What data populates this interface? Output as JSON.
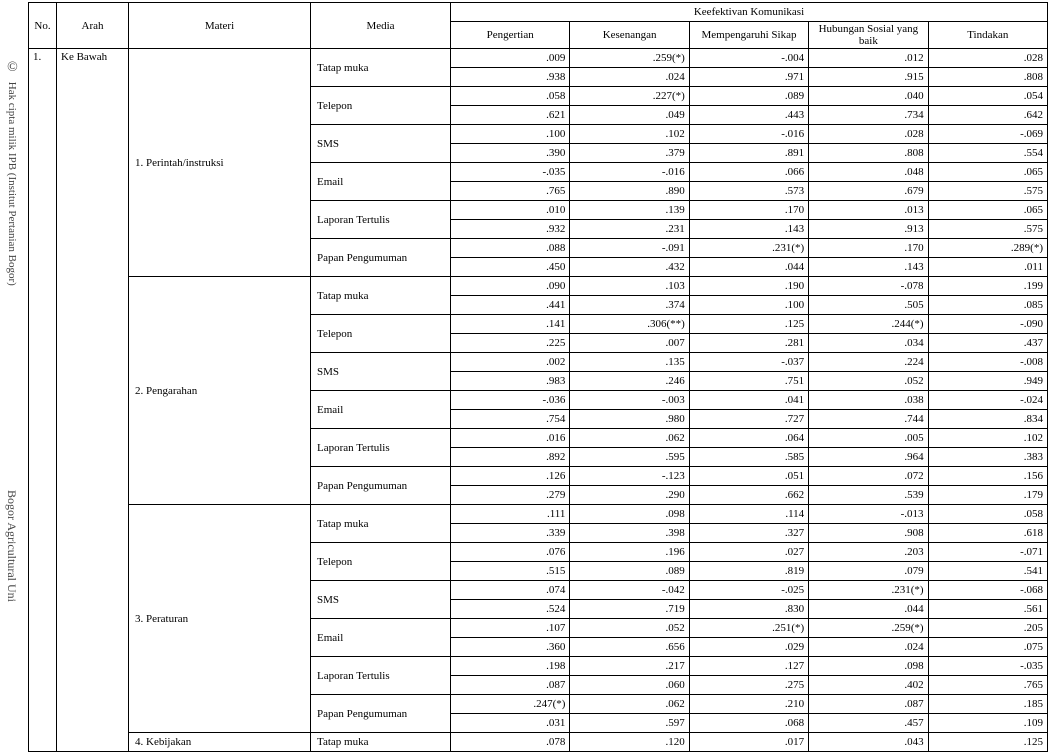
{
  "watermark": {
    "copy": "©",
    "top": "Hak cipta milik IPB (Institut Pertanian Bogor)",
    "bottom": "Bogor Agricultural Uni"
  },
  "headers": {
    "no": "No.",
    "arah": "Arah",
    "materi": "Materi",
    "media": "Media",
    "group": "Keefektivan Komunikasi",
    "cols": [
      "Pengertian",
      "Kesenangan",
      "Mempengaruhi Sikap",
      "Hubungan Sosial yang baik",
      "Tindakan"
    ]
  },
  "row_no": "1.",
  "arah": "Ke Bawah",
  "materi": [
    "1.  Perintah/instruksi",
    "2.  Pengarahan",
    "3.  Peraturan",
    "4.  Kebijakan"
  ],
  "media": [
    "Tatap muka",
    "Telepon",
    "SMS",
    "Email",
    "Laporan Tertulis",
    "Papan Pengumuman"
  ],
  "data": {
    "m1": {
      "tatapmuka": {
        "r": [
          ".009",
          ".259(*)",
          "-.004",
          ".012",
          ".028"
        ],
        "p": [
          ".938",
          ".024",
          ".971",
          ".915",
          ".808"
        ]
      },
      "telepon": {
        "r": [
          ".058",
          ".227(*)",
          ".089",
          ".040",
          ".054"
        ],
        "p": [
          ".621",
          ".049",
          ".443",
          ".734",
          ".642"
        ]
      },
      "sms": {
        "r": [
          ".100",
          ".102",
          "-.016",
          ".028",
          "-.069"
        ],
        "p": [
          ".390",
          ".379",
          ".891",
          ".808",
          ".554"
        ]
      },
      "email": {
        "r": [
          "-.035",
          "-.016",
          ".066",
          ".048",
          ".065"
        ],
        "p": [
          ".765",
          ".890",
          ".573",
          ".679",
          ".575"
        ]
      },
      "laporan": {
        "r": [
          ".010",
          ".139",
          ".170",
          ".013",
          ".065"
        ],
        "p": [
          ".932",
          ".231",
          ".143",
          ".913",
          ".575"
        ]
      },
      "papan": {
        "r": [
          ".088",
          "-.091",
          ".231(*)",
          ".170",
          ".289(*)"
        ],
        "p": [
          ".450",
          ".432",
          ".044",
          ".143",
          ".011"
        ]
      }
    },
    "m2": {
      "tatapmuka": {
        "r": [
          ".090",
          ".103",
          ".190",
          "-.078",
          ".199"
        ],
        "p": [
          ".441",
          ".374",
          ".100",
          ".505",
          ".085"
        ]
      },
      "telepon": {
        "r": [
          ".141",
          ".306(**)",
          ".125",
          ".244(*)",
          "-.090"
        ],
        "p": [
          ".225",
          ".007",
          ".281",
          ".034",
          ".437"
        ]
      },
      "sms": {
        "r": [
          ".002",
          ".135",
          "-.037",
          ".224",
          "-.008"
        ],
        "p": [
          ".983",
          ".246",
          ".751",
          ".052",
          ".949"
        ]
      },
      "email": {
        "r": [
          "-.036",
          "-.003",
          ".041",
          ".038",
          "-.024"
        ],
        "p": [
          ".754",
          ".980",
          ".727",
          ".744",
          ".834"
        ]
      },
      "laporan": {
        "r": [
          ".016",
          ".062",
          ".064",
          ".005",
          ".102"
        ],
        "p": [
          ".892",
          ".595",
          ".585",
          ".964",
          ".383"
        ]
      },
      "papan": {
        "r": [
          ".126",
          "-.123",
          ".051",
          ".072",
          ".156"
        ],
        "p": [
          ".279",
          ".290",
          ".662",
          ".539",
          ".179"
        ]
      }
    },
    "m3": {
      "tatapmuka": {
        "r": [
          ".111",
          ".098",
          ".114",
          "-.013",
          ".058"
        ],
        "p": [
          ".339",
          ".398",
          ".327",
          ".908",
          ".618"
        ]
      },
      "telepon": {
        "r": [
          ".076",
          ".196",
          ".027",
          ".203",
          "-.071"
        ],
        "p": [
          ".515",
          ".089",
          ".819",
          ".079",
          ".541"
        ]
      },
      "sms": {
        "r": [
          ".074",
          "-.042",
          "-.025",
          ".231(*)",
          "-.068"
        ],
        "p": [
          ".524",
          ".719",
          ".830",
          ".044",
          ".561"
        ]
      },
      "email": {
        "r": [
          ".107",
          ".052",
          ".251(*)",
          ".259(*)",
          ".205"
        ],
        "p": [
          ".360",
          ".656",
          ".029",
          ".024",
          ".075"
        ]
      },
      "laporan": {
        "r": [
          ".198",
          ".217",
          ".127",
          ".098",
          "-.035"
        ],
        "p": [
          ".087",
          ".060",
          ".275",
          ".402",
          ".765"
        ]
      },
      "papan": {
        "r": [
          ".247(*)",
          ".062",
          ".210",
          ".087",
          ".185"
        ],
        "p": [
          ".031",
          ".597",
          ".068",
          ".457",
          ".109"
        ]
      }
    },
    "m4": {
      "tatapmuka": {
        "r": [
          ".078",
          ".120",
          ".017",
          ".043",
          ".125"
        ]
      }
    }
  }
}
